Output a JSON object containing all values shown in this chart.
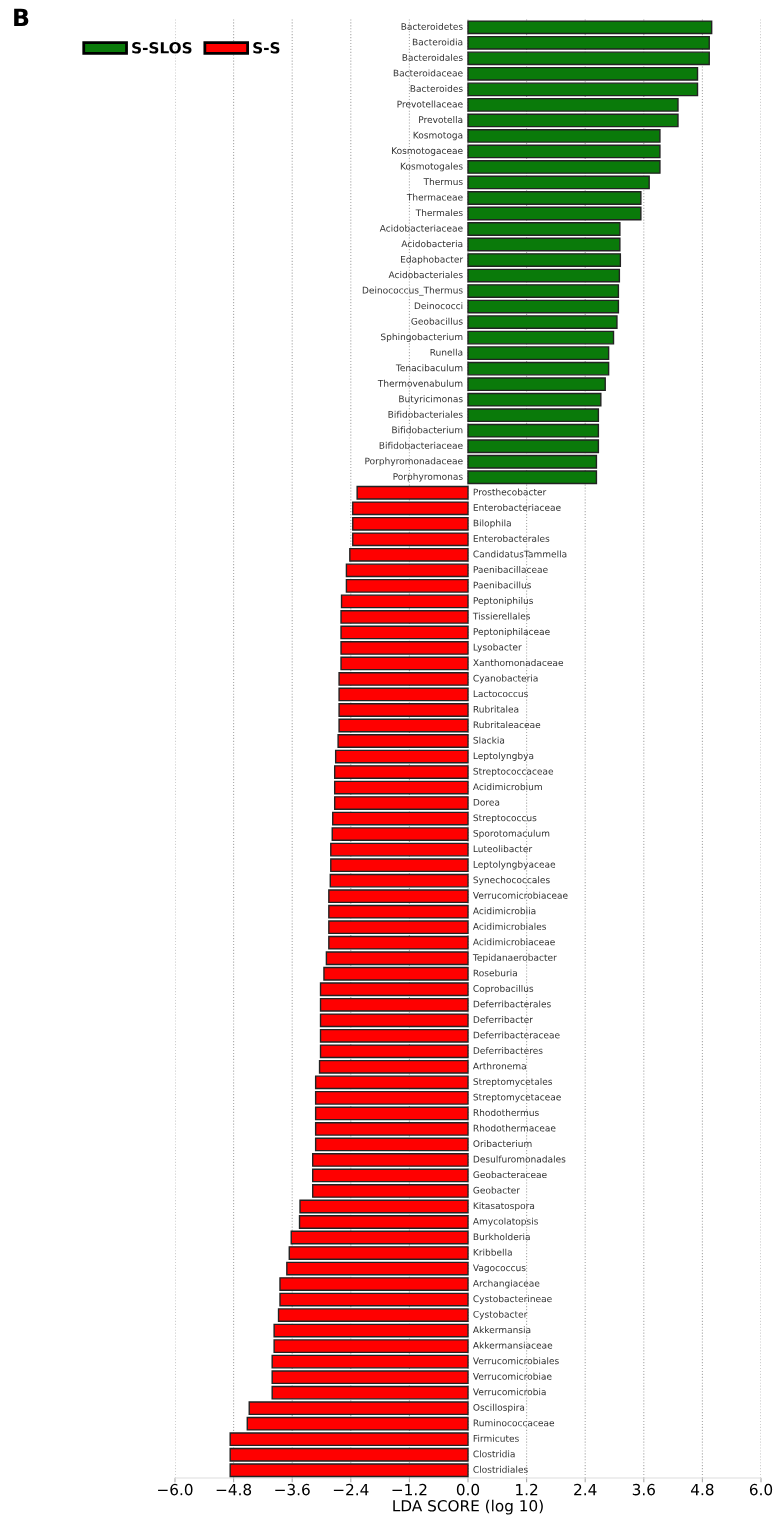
{
  "chart_data": {
    "type": "bar",
    "orientation": "horizontal",
    "categories": [
      "Bacteroidetes",
      "Bacteroidia",
      "Bacteroidales",
      "Bacteroidaceae",
      "Bacteroides",
      "Prevotellaceae",
      "Prevotella",
      "Kosmotoga",
      "Kosmotogaceae",
      "Kosmotogales",
      "Thermus",
      "Thermaceae",
      "Thermales",
      "Acidobacteriaceae",
      "Acidobacteria",
      "Edaphobacter",
      "Acidobacteriales",
      "Deinococcus_Thermus",
      "Deinococci",
      "Geobacillus",
      "Sphingobacterium",
      "Runella",
      "Tenacibaculum",
      "Thermovenabulum",
      "Butyricimonas",
      "Bifidobacteriales",
      "Bifidobacterium",
      "Bifidobacteriaceae",
      "Porphyromonadaceae",
      "Porphyromonas",
      "Prosthecobacter",
      "Enterobacteriaceae",
      "Bilophila",
      "Enterobacterales",
      "CandidatusTammella",
      "Paenibacillaceae",
      "Paenibacillus",
      "Peptoniphilus",
      "Tissierellales",
      "Peptoniphilaceae",
      "Lysobacter",
      "Xanthomonadaceae",
      "Cyanobacteria",
      "Lactococcus",
      "Rubritalea",
      "Rubritaleaceae",
      "Slackia",
      "Leptolyngbya",
      "Streptococcaceae",
      "Acidimicrobium",
      "Dorea",
      "Streptococcus",
      "Sporotomaculum",
      "Luteolibacter",
      "Leptolyngbyaceae",
      "Synechococcales",
      "Verrucomicrobiaceae",
      "Acidimicrobiia",
      "Acidimicrobiales",
      "Acidimicrobiaceae",
      "Tepidanaerobacter",
      "Roseburia",
      "Coprobacillus",
      "Deferribacterales",
      "Deferribacter",
      "Deferribacteraceae",
      "Deferribacteres",
      "Arthronema",
      "Streptomycetales",
      "Streptomycetaceae",
      "Rhodothermus",
      "Rhodothermaceae",
      "Oribacterium",
      "Desulfuromonadales",
      "Geobacteraceae",
      "Geobacter",
      "Kitasatospora",
      "Amycolatopsis",
      "Burkholderia",
      "Kribbella",
      "Vagococcus",
      "Archangiaceae",
      "Cystobacterineae",
      "Cystobacter",
      "Akkermansia",
      "Akkermansiaceae",
      "Verrucomicrobiales",
      "Verrucomicrobiae",
      "Verrucomicrobia",
      "Oscillospira",
      "Ruminococcaceae",
      "Firmicutes",
      "Clostridia",
      "Clostridiales"
    ],
    "series": [
      {
        "name": "S-SLOS",
        "color": "#0a7a0a",
        "values": [
          4.99,
          4.94,
          4.94,
          4.7,
          4.7,
          4.3,
          4.3,
          3.93,
          3.93,
          3.93,
          3.71,
          3.54,
          3.54,
          3.11,
          3.11,
          3.12,
          3.1,
          3.08,
          3.08,
          3.05,
          2.98,
          2.88,
          2.88,
          2.81,
          2.72,
          2.67,
          2.67,
          2.67,
          2.63,
          2.63,
          null,
          null,
          null,
          null,
          null,
          null,
          null,
          null,
          null,
          null,
          null,
          null,
          null,
          null,
          null,
          null,
          null,
          null,
          null,
          null,
          null,
          null,
          null,
          null,
          null,
          null,
          null,
          null,
          null,
          null,
          null,
          null,
          null,
          null,
          null,
          null,
          null,
          null,
          null,
          null,
          null,
          null,
          null,
          null,
          null,
          null,
          null,
          null,
          null,
          null,
          null,
          null,
          null,
          null,
          null,
          null,
          null,
          null,
          null,
          null,
          null,
          null,
          null,
          null
        ]
      },
      {
        "name": "S-S",
        "color": "#ff0000",
        "values": [
          null,
          null,
          null,
          null,
          null,
          null,
          null,
          null,
          null,
          null,
          null,
          null,
          null,
          null,
          null,
          null,
          null,
          null,
          null,
          null,
          null,
          null,
          null,
          null,
          null,
          null,
          null,
          null,
          null,
          null,
          -2.27,
          -2.36,
          -2.36,
          -2.36,
          -2.42,
          -2.49,
          -2.49,
          -2.59,
          -2.6,
          -2.6,
          -2.6,
          -2.6,
          -2.64,
          -2.64,
          -2.64,
          -2.64,
          -2.66,
          -2.71,
          -2.73,
          -2.73,
          -2.73,
          -2.77,
          -2.78,
          -2.81,
          -2.81,
          -2.82,
          -2.85,
          -2.85,
          -2.85,
          -2.85,
          -2.9,
          -2.95,
          -3.02,
          -3.02,
          -3.02,
          -3.02,
          -3.02,
          -3.04,
          -3.12,
          -3.12,
          -3.12,
          -3.12,
          -3.12,
          -3.18,
          -3.18,
          -3.18,
          -3.44,
          -3.45,
          -3.62,
          -3.66,
          -3.71,
          -3.85,
          -3.85,
          -3.88,
          -3.97,
          -3.97,
          -4.01,
          -4.01,
          -4.01,
          -4.48,
          -4.52,
          -4.87,
          -4.87,
          -4.87
        ]
      }
    ],
    "xlim": [
      -6.0,
      6.0
    ],
    "xticks": [
      {
        "value": -6.0,
        "label": "−6.0"
      },
      {
        "value": -4.8,
        "label": "−4.8"
      },
      {
        "value": -3.6,
        "label": "−3.6"
      },
      {
        "value": -2.4,
        "label": "−2.4"
      },
      {
        "value": -1.2,
        "label": "−1.2"
      },
      {
        "value": 0.0,
        "label": "0.0"
      },
      {
        "value": 1.2,
        "label": "1.2"
      },
      {
        "value": 2.4,
        "label": "2.4"
      },
      {
        "value": 3.6,
        "label": "3.6"
      },
      {
        "value": 4.8,
        "label": "4.8"
      },
      {
        "value": 6.0,
        "label": "6.0"
      }
    ],
    "xlabel": "LDA SCORE (log 10)",
    "grid": "x",
    "legend": "top left",
    "annotations": [
      "B"
    ]
  }
}
